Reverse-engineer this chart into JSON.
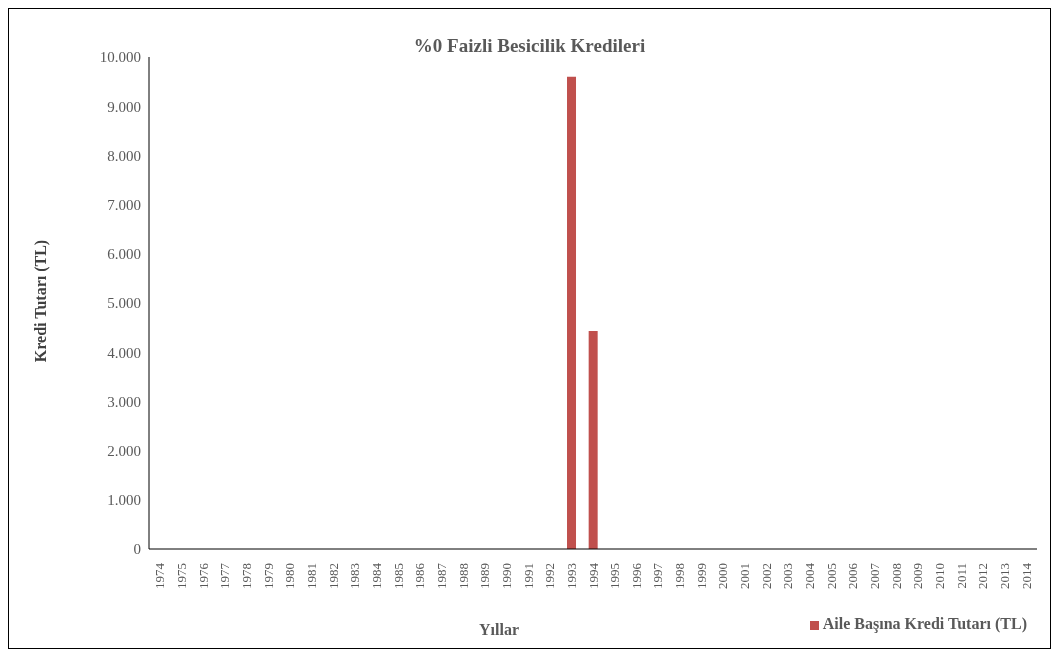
{
  "chart_data": {
    "type": "bar",
    "title": "%0 Faizli Besicilik Kredileri",
    "xlabel": "Yıllar",
    "ylabel": "Kredi Tutarı (TL)",
    "categories": [
      "1974",
      "1975",
      "1976",
      "1977",
      "1978",
      "1979",
      "1980",
      "1981",
      "1982",
      "1983",
      "1984",
      "1985",
      "1986",
      "1987",
      "1988",
      "1989",
      "1990",
      "1991",
      "1992",
      "1993",
      "1994",
      "1995",
      "1996",
      "1997",
      "1998",
      "1999",
      "2000",
      "2001",
      "2002",
      "2003",
      "2004",
      "2005",
      "2006",
      "2007",
      "2008",
      "2009",
      "2010",
      "2011",
      "2012",
      "2013",
      "2014"
    ],
    "series": [
      {
        "name": "Aile Başına Kredi Tutarı (TL)",
        "color": "#c0504d",
        "values": [
          0,
          0,
          0,
          0,
          0,
          0,
          0,
          0,
          0,
          0,
          0,
          0,
          0,
          0,
          0,
          0,
          0,
          0,
          0,
          9600,
          4430,
          0,
          0,
          0,
          0,
          0,
          0,
          0,
          0,
          0,
          0,
          0,
          0,
          0,
          0,
          0,
          0,
          0,
          0,
          0,
          0
        ]
      }
    ],
    "ylim": [
      0,
      10000
    ],
    "yticks": [
      0,
      {
        "value": 1000,
        "label": "1.000"
      },
      {
        "value": 2000,
        "label": "2.000"
      },
      {
        "value": 3000,
        "label": "3.000"
      },
      {
        "value": 4000,
        "label": "4.000"
      },
      {
        "value": 5000,
        "label": "5.000"
      },
      {
        "value": 6000,
        "label": "6.000"
      },
      {
        "value": 7000,
        "label": "7.000"
      },
      {
        "value": 8000,
        "label": "8.000"
      },
      {
        "value": 9000,
        "label": "9.000"
      },
      {
        "value": 10000,
        "label": "10.000"
      }
    ],
    "grid": false,
    "legend": "bottom right"
  }
}
